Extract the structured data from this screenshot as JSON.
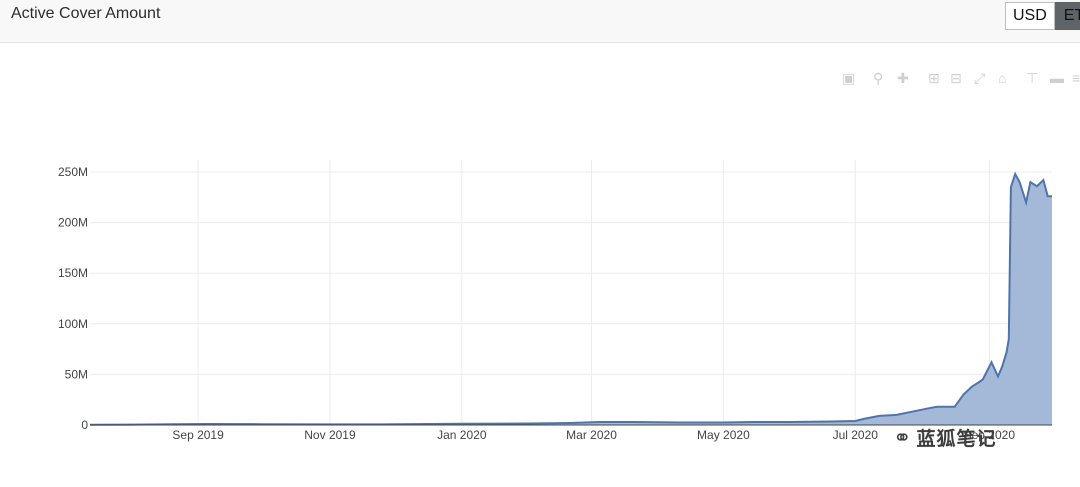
{
  "header": {
    "title": "Active Cover Amount",
    "currency_options": [
      "USD",
      "ETH"
    ],
    "selected_currency": "ETH"
  },
  "modebar": {
    "icons": [
      "camera-icon",
      "zoom-icon",
      "pan-icon",
      "zoom-in-icon",
      "zoom-out-icon",
      "autoscale-icon",
      "home-icon",
      "spike-lines-icon",
      "hover-closest-icon",
      "hover-compare-icon"
    ]
  },
  "colors": {
    "line": "#4e74a9",
    "fill": "#a4b9d8",
    "grid": "#ececec"
  },
  "watermark": {
    "text": "蓝狐笔记"
  },
  "chart_data": {
    "type": "area",
    "title": "Active Cover Amount",
    "xlabel": "",
    "ylabel": "",
    "xlim": [
      "2019-07-13",
      "2020-09-30"
    ],
    "ylim": [
      0,
      250000000
    ],
    "grid": true,
    "yticks": [
      0,
      50000000,
      100000000,
      150000000,
      200000000,
      250000000
    ],
    "yticklabels": [
      "0",
      "50M",
      "100M",
      "150M",
      "200M",
      "250M"
    ],
    "xticks": [
      "2019-09-01",
      "2019-11-01",
      "2020-01-01",
      "2020-03-01",
      "2020-05-01",
      "2020-07-01",
      "2020-09-01"
    ],
    "xticklabels": [
      "Sep 2019",
      "Nov 2019",
      "Jan 2020",
      "Mar 2020",
      "May 2020",
      "Jul 2020",
      "Sep 2020"
    ],
    "series": [
      {
        "x": [
          "2019-07-13",
          "2019-08-01",
          "2019-08-20",
          "2019-09-05",
          "2019-10-01",
          "2019-11-01",
          "2019-12-01",
          "2020-01-01",
          "2020-02-01",
          "2020-02-20",
          "2020-03-05",
          "2020-03-20",
          "2020-04-10",
          "2020-05-01",
          "2020-05-15",
          "2020-06-01",
          "2020-06-20",
          "2020-07-01",
          "2020-07-05",
          "2020-07-12",
          "2020-07-20",
          "2020-07-27",
          "2020-08-05",
          "2020-08-08",
          "2020-08-12",
          "2020-08-16",
          "2020-08-20",
          "2020-08-24",
          "2020-08-27",
          "2020-08-29",
          "2020-09-02",
          "2020-09-05",
          "2020-09-07",
          "2020-09-09",
          "2020-09-10",
          "2020-09-11",
          "2020-09-13",
          "2020-09-15",
          "2020-09-18",
          "2020-09-20",
          "2020-09-23",
          "2020-09-26",
          "2020-09-28",
          "2020-09-30"
        ],
        "y": [
          200000,
          400000,
          800000,
          1000000,
          800000,
          600000,
          700000,
          1200000,
          1500000,
          2000000,
          3000000,
          3000000,
          2500000,
          2500000,
          3000000,
          3000000,
          3500000,
          4000000,
          6000000,
          9000000,
          10000000,
          13000000,
          17000000,
          18000000,
          18000000,
          18000000,
          30000000,
          38000000,
          42000000,
          45000000,
          62000000,
          48000000,
          58000000,
          72000000,
          85000000,
          235000000,
          248000000,
          240000000,
          220000000,
          240000000,
          236000000,
          242000000,
          226000000,
          226000000
        ]
      }
    ]
  }
}
